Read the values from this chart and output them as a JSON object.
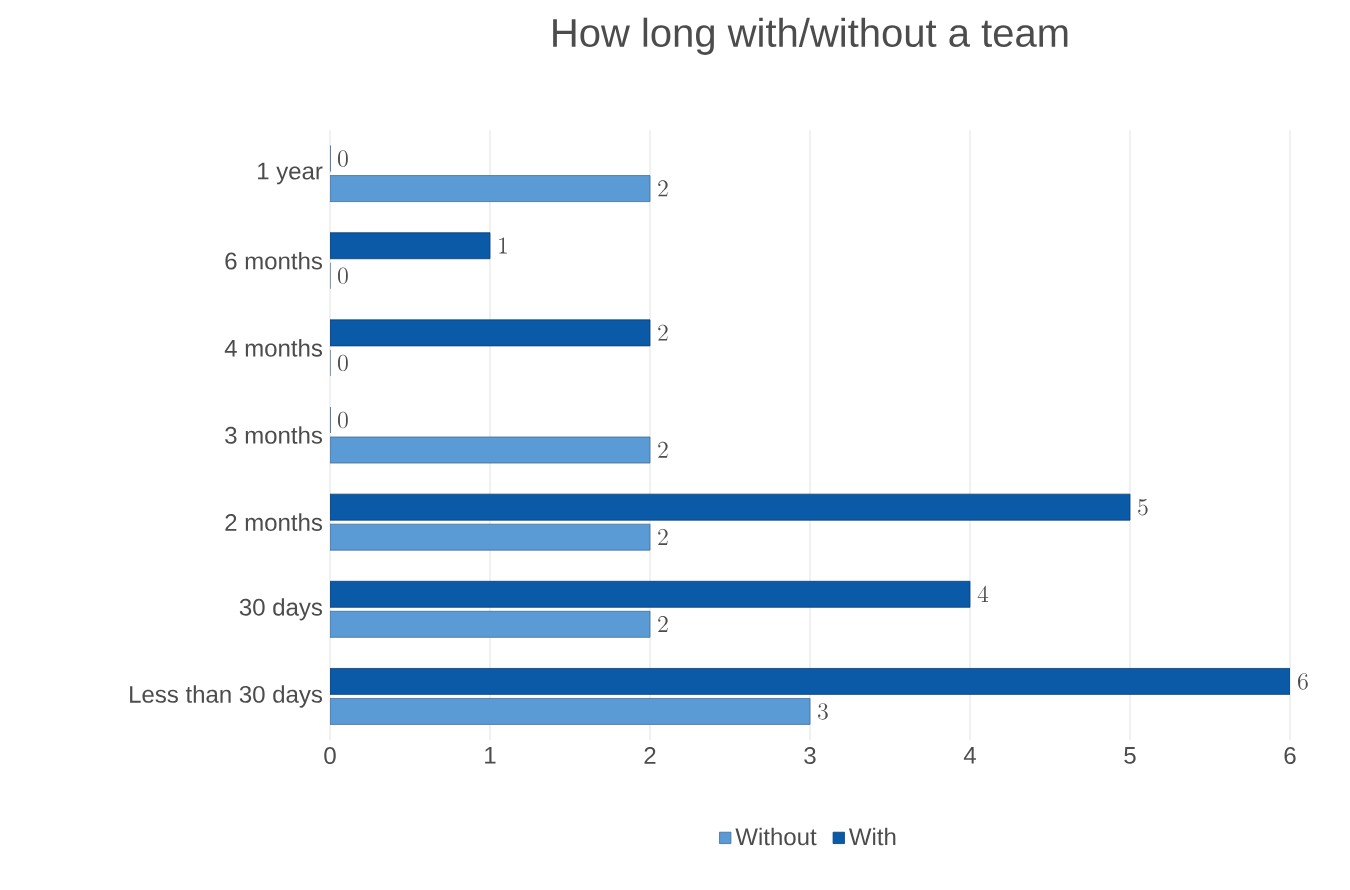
{
  "chart_data": {
    "type": "bar",
    "orientation": "horizontal",
    "title": "How long with/without a team",
    "categories": [
      "1 year",
      "6 months",
      "4 months",
      "3 months",
      "2 months",
      "30 days",
      "Less than 30 days"
    ],
    "series": [
      {
        "name": "Without",
        "color": "#5b9bd5",
        "values": [
          2,
          0,
          0,
          2,
          2,
          2,
          3
        ]
      },
      {
        "name": "With",
        "color": "#0b5aa8",
        "values": [
          0,
          1,
          2,
          0,
          5,
          4,
          6
        ]
      }
    ],
    "xlim": [
      0,
      6
    ],
    "xticks": [
      0,
      1,
      2,
      3,
      4,
      5,
      6
    ],
    "grid": "x",
    "legend": "bottom",
    "data_labels": true
  }
}
